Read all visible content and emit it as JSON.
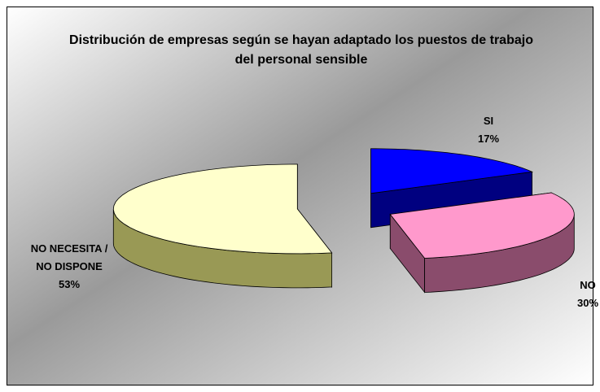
{
  "chart_data": {
    "type": "pie3d",
    "title": "Distribución de empresas según se hayan adaptado los puestos de trabajo del personal sensible",
    "categories": [
      "SI",
      "NO",
      "NO NECESITA / NO DISPONE"
    ],
    "values": [
      17,
      30,
      53
    ],
    "value_labels": [
      "17%",
      "30%",
      "53%"
    ],
    "colors": [
      "#0000ff",
      "#ff99cc",
      "#ffffcc"
    ],
    "side_colors": [
      "#000080",
      "#8a4c6c",
      "#999955"
    ]
  }
}
